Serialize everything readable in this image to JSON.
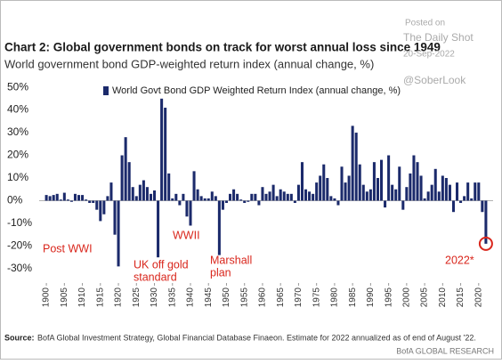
{
  "chart_data": {
    "type": "bar",
    "title": "Chart 2: Global government bonds on track for worst annual loss since 1949",
    "subtitle": "World government bond GDP-weighted return index (annual change, %)",
    "watermark": [
      "Posted on",
      "The Daily Shot",
      "20-Sep-2022",
      "@SoberLook"
    ],
    "x": [
      1900,
      1901,
      1902,
      1903,
      1904,
      1905,
      1906,
      1907,
      1908,
      1909,
      1910,
      1911,
      1912,
      1913,
      1914,
      1915,
      1916,
      1917,
      1918,
      1919,
      1920,
      1921,
      1922,
      1923,
      1924,
      1925,
      1926,
      1927,
      1928,
      1929,
      1930,
      1931,
      1932,
      1933,
      1934,
      1935,
      1936,
      1937,
      1938,
      1939,
      1940,
      1941,
      1942,
      1943,
      1944,
      1945,
      1946,
      1947,
      1948,
      1949,
      1950,
      1951,
      1952,
      1953,
      1954,
      1955,
      1956,
      1957,
      1958,
      1959,
      1960,
      1961,
      1962,
      1963,
      1964,
      1965,
      1966,
      1967,
      1968,
      1969,
      1970,
      1971,
      1972,
      1973,
      1974,
      1975,
      1976,
      1977,
      1978,
      1979,
      1980,
      1981,
      1982,
      1983,
      1984,
      1985,
      1986,
      1987,
      1988,
      1989,
      1990,
      1991,
      1992,
      1993,
      1994,
      1995,
      1996,
      1997,
      1998,
      1999,
      2000,
      2001,
      2002,
      2003,
      2004,
      2005,
      2006,
      2007,
      2008,
      2009,
      2010,
      2011,
      2012,
      2013,
      2014,
      2015,
      2016,
      2017,
      2018,
      2019,
      2020,
      2021,
      2022
    ],
    "series": [
      {
        "name": "World Govt Bond GDP Weighted Return Index (annual change, %)",
        "color": "#1b2a6b",
        "values": [
          2.5,
          2,
          2.5,
          3,
          0.5,
          3.5,
          0.5,
          -0.5,
          3,
          2.5,
          2.5,
          0.5,
          -1,
          -1,
          -4,
          -9,
          -6,
          2,
          8,
          -15,
          -29,
          20,
          28,
          17,
          6,
          2,
          7,
          9,
          6,
          3,
          4.5,
          -25,
          45,
          41,
          12,
          1,
          3,
          -2,
          3,
          -7,
          -11,
          13,
          5,
          2,
          1,
          1,
          4,
          2,
          -24,
          -4,
          -1,
          3,
          5,
          3,
          0.5,
          -1,
          -0.5,
          3,
          3,
          -2,
          6,
          3,
          4,
          7,
          2,
          5,
          4,
          3,
          3,
          -1,
          7,
          17,
          5,
          4,
          3,
          8,
          11,
          16,
          10,
          2,
          1,
          -2,
          15,
          8,
          11,
          33,
          30,
          16,
          7,
          4,
          5,
          17,
          10,
          18,
          -3,
          20,
          7,
          5,
          15,
          -4,
          6,
          12,
          20,
          17,
          11,
          1,
          4,
          7,
          14,
          4,
          11,
          10,
          7,
          -5,
          8,
          -1,
          2,
          8,
          1,
          8,
          8,
          -5,
          -19
        ]
      }
    ],
    "xlim": [
      1898,
      2024
    ],
    "xticks": [
      1900,
      1905,
      1910,
      1915,
      1920,
      1925,
      1930,
      1935,
      1940,
      1945,
      1950,
      1955,
      1960,
      1965,
      1970,
      1975,
      1980,
      1985,
      1990,
      1995,
      2000,
      2005,
      2010,
      2015,
      2020
    ],
    "ylim": [
      -32,
      52
    ],
    "yticks": [
      {
        "value": -30,
        "label": "-30%"
      },
      {
        "value": -20,
        "label": "-20%"
      },
      {
        "value": -10,
        "label": "-10%"
      },
      {
        "value": 0,
        "label": "0%"
      },
      {
        "value": 10,
        "label": "10%"
      },
      {
        "value": 20,
        "label": "20%"
      },
      {
        "value": 30,
        "label": "30%"
      },
      {
        "value": 40,
        "label": "40%"
      },
      {
        "value": 50,
        "label": "50%"
      }
    ],
    "grid": false,
    "annotations": [
      [
        "Post WWI"
      ],
      [
        "UK off gold",
        "standard"
      ],
      [
        "WWII"
      ],
      [
        "Marshall",
        "plan"
      ],
      [
        "2022*"
      ]
    ],
    "source_label": "Source:",
    "source": "BofA Global Investment Strategy, Global Financial Database Finaeon. Estimate for 2022 annualized as of end of August '22.",
    "footer": "BofA GLOBAL RESEARCH"
  }
}
